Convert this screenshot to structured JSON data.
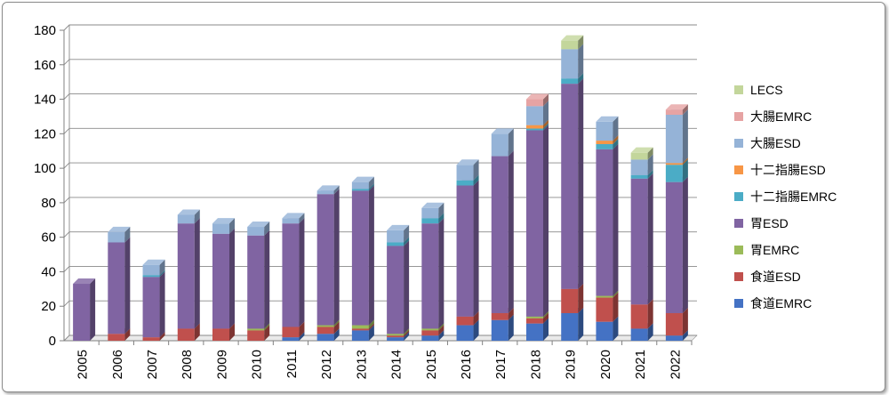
{
  "chart_data": {
    "type": "bar",
    "stacked": true,
    "style": "3d",
    "title": "",
    "xlabel": "",
    "ylabel": "",
    "ylim": [
      0,
      180
    ],
    "yticks": [
      0,
      20,
      40,
      60,
      80,
      100,
      120,
      140,
      160,
      180
    ],
    "grid": true,
    "legend": "right",
    "categories": [
      "2005",
      "2006",
      "2007",
      "2008",
      "2009",
      "2010",
      "2011",
      "2012",
      "2013",
      "2014",
      "2015",
      "2016",
      "2017",
      "2018",
      "2019",
      "2020",
      "2021",
      "2022"
    ],
    "series": [
      {
        "name": "食道EMRC",
        "color": "#4472c4",
        "values": [
          0,
          0,
          0,
          0,
          0,
          0,
          2,
          4,
          6,
          2,
          3,
          9,
          12,
          10,
          16,
          11,
          7,
          3
        ]
      },
      {
        "name": "食道ESD",
        "color": "#c0504d",
        "values": [
          0,
          4,
          2,
          7,
          7,
          6,
          6,
          4,
          1,
          1,
          3,
          5,
          4,
          3,
          14,
          14,
          14,
          13
        ]
      },
      {
        "name": "胃EMRC",
        "color": "#9bbb59",
        "values": [
          0,
          0,
          0,
          0,
          0,
          1,
          0,
          1,
          2,
          1,
          1,
          0,
          0,
          1,
          0,
          1,
          0,
          0
        ]
      },
      {
        "name": "胃ESD",
        "color": "#8064a2",
        "values": [
          33,
          53,
          35,
          61,
          55,
          54,
          60,
          76,
          78,
          51,
          61,
          76,
          91,
          108,
          119,
          85,
          73,
          76
        ]
      },
      {
        "name": "十二指腸EMRC",
        "color": "#4bacc6",
        "values": [
          0,
          0,
          1,
          0,
          0,
          0,
          0,
          0,
          1,
          2,
          3,
          3,
          0,
          1,
          3,
          3,
          2,
          10
        ]
      },
      {
        "name": "十二指腸ESD",
        "color": "#f79646",
        "values": [
          0,
          0,
          0,
          0,
          0,
          0,
          0,
          0,
          0,
          0,
          0,
          0,
          0,
          2,
          0,
          2,
          0,
          1
        ]
      },
      {
        "name": "大腸ESD",
        "color": "#95b3d7",
        "values": [
          0,
          6,
          6,
          5,
          6,
          5,
          3,
          2,
          4,
          7,
          6,
          9,
          13,
          11,
          17,
          11,
          9,
          28
        ]
      },
      {
        "name": "大腸EMRC",
        "color": "#e6a3a3",
        "values": [
          0,
          0,
          0,
          0,
          0,
          0,
          0,
          0,
          0,
          0,
          0,
          0,
          0,
          4,
          0,
          0,
          0,
          3
        ]
      },
      {
        "name": "LECS",
        "color": "#c3d69b",
        "values": [
          0,
          0,
          0,
          0,
          0,
          0,
          0,
          0,
          0,
          0,
          0,
          0,
          0,
          0,
          5,
          0,
          4,
          0
        ]
      }
    ],
    "legend_order": [
      "LECS",
      "大腸EMRC",
      "大腸ESD",
      "十二指腸ESD",
      "十二指腸EMRC",
      "胃ESD",
      "胃EMRC",
      "食道ESD",
      "食道EMRC"
    ]
  }
}
